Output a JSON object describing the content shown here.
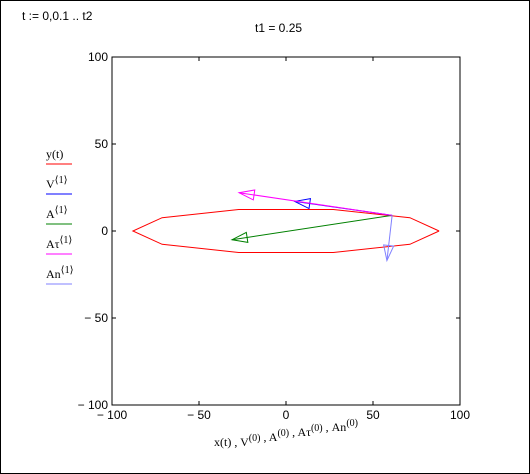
{
  "header": {
    "range_definition": "t := 0,0.1 .. t2",
    "t1_label": "t1 = 0.25"
  },
  "chart_data": {
    "type": "line",
    "title": "t1 = 0.25",
    "xlabel": "x(t), V(0), A(0), Aτ(0), An(0)",
    "xlim": [
      -100,
      100
    ],
    "ylim": [
      -100,
      100
    ],
    "x_ticks": [
      -100,
      -50,
      0,
      50,
      100
    ],
    "y_ticks": [
      100,
      50,
      0,
      -50,
      -100
    ],
    "x_tick_labels": [
      "− 100",
      "− 50",
      "0",
      "50",
      "100"
    ],
    "y_tick_labels": [
      "100",
      "50",
      "0",
      "− 50",
      "− 100"
    ],
    "legend_position": "left",
    "series": [
      {
        "name": "y(t)",
        "label_base": "y(t)",
        "label_sup": "",
        "color": "#ff0000",
        "kind": "ellipse",
        "cx": 0,
        "cy": 0,
        "rx": 88,
        "ry": 13
      },
      {
        "name": "V(1)",
        "label_base": "V",
        "label_sup": "⟨1⟩",
        "color": "#0000ff",
        "kind": "arrow",
        "from": [
          61,
          9
        ],
        "to": [
          5,
          17
        ]
      },
      {
        "name": "A(1)",
        "label_base": "A",
        "label_sup": "⟨1⟩",
        "color": "#008000",
        "kind": "arrow",
        "from": [
          61,
          9
        ],
        "to": [
          -31,
          -5
        ]
      },
      {
        "name": "Aτ(1)",
        "label_base": "Aτ",
        "label_sup": "⟨1⟩",
        "color": "#ff00ff",
        "kind": "arrow",
        "from": [
          61,
          9
        ],
        "to": [
          -27,
          22
        ]
      },
      {
        "name": "An(1)",
        "label_base": "An",
        "label_sup": "⟨1⟩",
        "color": "#8080ff",
        "kind": "arrow",
        "from": [
          61,
          9
        ],
        "to": [
          58,
          -17
        ]
      }
    ]
  }
}
